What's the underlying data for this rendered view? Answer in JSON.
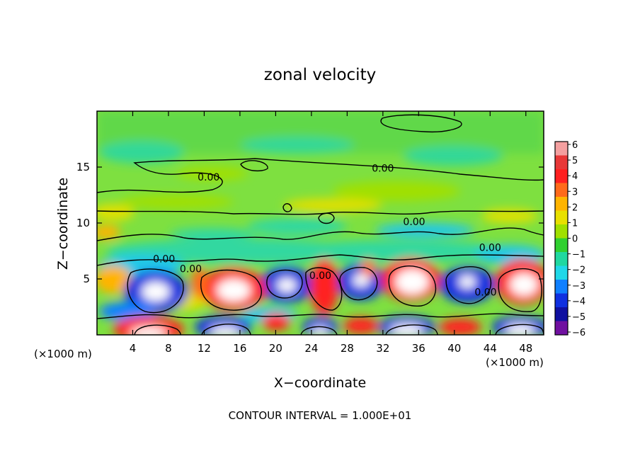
{
  "chart_data": {
    "type": "heatmap",
    "title": "zonal velocity",
    "xlabel": "X−coordinate",
    "ylabel": "Z−coordinate",
    "x_unit_left": "(×1000 m)",
    "x_unit_right": "(×1000 m)",
    "xlim": [
      0,
      50
    ],
    "ylim": [
      0,
      20
    ],
    "x_ticks": [
      4,
      8,
      12,
      16,
      20,
      24,
      28,
      32,
      36,
      40,
      44,
      48
    ],
    "y_ticks": [
      5,
      10,
      15
    ],
    "colorbar": {
      "range": [
        -6,
        6
      ],
      "ticks": [
        "6",
        "5",
        "4",
        "3",
        "2",
        "1",
        "0",
        "−1",
        "−2",
        "−3",
        "−4",
        "−5",
        "−6"
      ],
      "colors": [
        "#f4a0a0",
        "#e83838",
        "#ff2020",
        "#ff6a1a",
        "#ffb400",
        "#e8e000",
        "#a0e000",
        "#30d030",
        "#20d8a0",
        "#20d8e8",
        "#1080ff",
        "#1030e0",
        "#1010a0",
        "#7010a0"
      ]
    },
    "contour_labels": [
      {
        "text": "0.00",
        "x": 12.5,
        "z": 13.8
      },
      {
        "text": "0.00",
        "x": 32.0,
        "z": 14.6
      },
      {
        "text": "0.00",
        "x": 35.5,
        "z": 9.8
      },
      {
        "text": "0.00",
        "x": 7.5,
        "z": 6.5
      },
      {
        "text": "0.00",
        "x": 10.5,
        "z": 5.6
      },
      {
        "text": "0.00",
        "x": 25.0,
        "z": 5.0
      },
      {
        "text": "0.00",
        "x": 44.0,
        "z": 7.5
      },
      {
        "text": "0.00",
        "x": 43.5,
        "z": 3.5
      }
    ],
    "contour_interval_text": "CONTOUR INTERVAL = 1.000E+01"
  }
}
